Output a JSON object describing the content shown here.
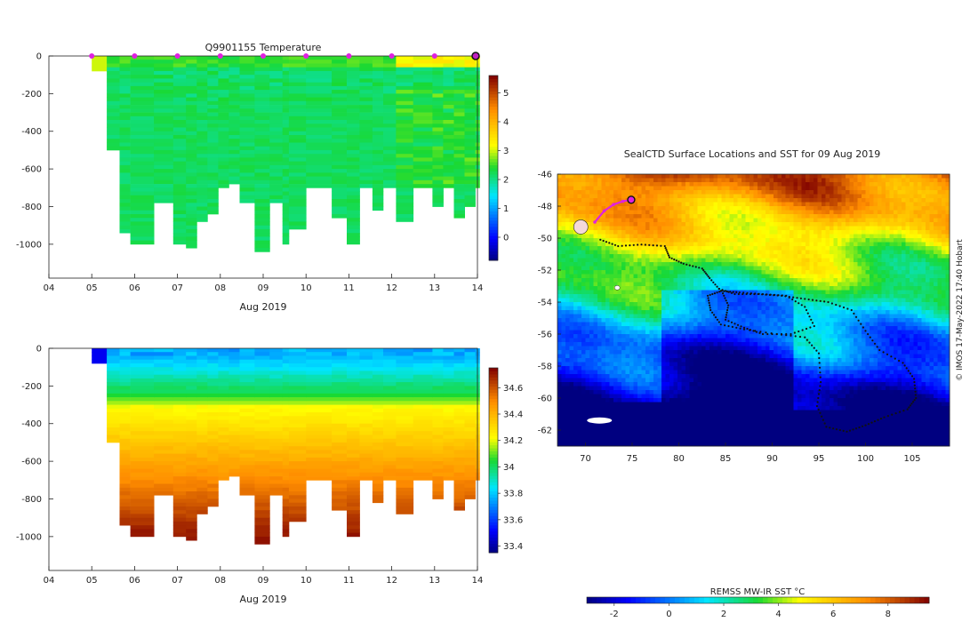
{
  "chart_data": [
    {
      "id": "temperature",
      "type": "heatmap",
      "title": "Q9901155  Temperature",
      "xlabel": "Aug 2019",
      "ylabel": "",
      "x_ticks": [
        "04",
        "05",
        "06",
        "07",
        "08",
        "09",
        "10",
        "11",
        "12",
        "13",
        "14"
      ],
      "xlim": [
        4,
        14
      ],
      "ylim": [
        0,
        -1180
      ],
      "y_ticks": [
        "0",
        "-200",
        "-400",
        "-600",
        "-800",
        "-1000"
      ],
      "y_tick_values": [
        0,
        -200,
        -400,
        -600,
        -800,
        -1000
      ],
      "colorbar_range": [
        -0.8,
        5.6
      ],
      "colorbar_ticks": [
        "0",
        "1",
        "2",
        "3",
        "4",
        "5"
      ],
      "colorbar_tick_values": [
        0,
        1,
        2,
        3,
        4,
        5
      ],
      "profile_marker_days": [
        5,
        6,
        7,
        8,
        9,
        10,
        11,
        12,
        13
      ],
      "current_position_day": 14,
      "profiles": [
        {
          "day": 5.0,
          "max_depth": 80
        },
        {
          "day": 5.35,
          "max_depth": 500
        },
        {
          "day": 5.65,
          "max_depth": 940
        },
        {
          "day": 5.9,
          "max_depth": 1000
        },
        {
          "day": 6.45,
          "max_depth": 780
        },
        {
          "day": 6.9,
          "max_depth": 990
        },
        {
          "day": 7.2,
          "max_depth": 1010
        },
        {
          "day": 7.45,
          "max_depth": 870
        },
        {
          "day": 7.7,
          "max_depth": 840
        },
        {
          "day": 7.95,
          "max_depth": 700
        },
        {
          "day": 8.2,
          "max_depth": 670
        },
        {
          "day": 8.45,
          "max_depth": 770
        },
        {
          "day": 8.8,
          "max_depth": 1040
        },
        {
          "day": 9.15,
          "max_depth": 780
        },
        {
          "day": 9.45,
          "max_depth": 1000
        },
        {
          "day": 9.6,
          "max_depth": 910
        },
        {
          "day": 10.0,
          "max_depth": 700
        },
        {
          "day": 10.6,
          "max_depth": 860
        },
        {
          "day": 10.95,
          "max_depth": 1000
        },
        {
          "day": 11.25,
          "max_depth": 700
        },
        {
          "day": 11.55,
          "max_depth": 810
        },
        {
          "day": 11.8,
          "max_depth": 700
        },
        {
          "day": 12.1,
          "max_depth": 870
        },
        {
          "day": 12.5,
          "max_depth": 700
        },
        {
          "day": 12.95,
          "max_depth": 800
        },
        {
          "day": 13.2,
          "max_depth": 700
        },
        {
          "day": 13.45,
          "max_depth": 860
        },
        {
          "day": 13.7,
          "max_depth": 800
        },
        {
          "day": 13.95,
          "max_depth": 700
        }
      ]
    },
    {
      "id": "salinity",
      "type": "heatmap",
      "title": "",
      "xlabel": "Aug 2019",
      "ylabel": "",
      "x_ticks": [
        "04",
        "05",
        "06",
        "07",
        "08",
        "09",
        "10",
        "11",
        "12",
        "13",
        "14"
      ],
      "xlim": [
        4,
        14
      ],
      "ylim": [
        0,
        -1180
      ],
      "y_ticks": [
        "0",
        "-200",
        "-400",
        "-600",
        "-800",
        "-1000"
      ],
      "y_tick_values": [
        0,
        -200,
        -400,
        -600,
        -800,
        -1000
      ],
      "colorbar_range": [
        33.35,
        34.75
      ],
      "colorbar_ticks": [
        "33.4",
        "33.6",
        "33.8",
        "34",
        "34.2",
        "34.4",
        "34.6"
      ],
      "colorbar_tick_values": [
        33.4,
        33.6,
        33.8,
        34.0,
        34.2,
        34.4,
        34.6
      ]
    },
    {
      "id": "map",
      "type": "heatmap",
      "title": "SealCTD Surface Locations and SST for 09 Aug 2019",
      "xlabel": "",
      "ylabel": "",
      "x_ticks": [
        "70",
        "75",
        "80",
        "85",
        "90",
        "95",
        "100",
        "105"
      ],
      "x_tick_values": [
        70,
        75,
        80,
        85,
        90,
        95,
        100,
        105
      ],
      "xlim": [
        67,
        109
      ],
      "y_ticks": [
        "-46",
        "-48",
        "-50",
        "-52",
        "-54",
        "-56",
        "-58",
        "-60",
        "-62"
      ],
      "y_tick_values": [
        -46,
        -48,
        -50,
        -52,
        -54,
        -56,
        -58,
        -60,
        -62
      ],
      "ylim": [
        -46,
        -63
      ],
      "track_history": [
        [
          71.6,
          -50.1
        ],
        [
          73.5,
          -50.5
        ],
        [
          76.0,
          -50.4
        ],
        [
          78.5,
          -50.5
        ],
        [
          79.0,
          -51.2
        ],
        [
          80.5,
          -51.6
        ],
        [
          82.5,
          -51.9
        ],
        [
          83.3,
          -52.5
        ],
        [
          84.5,
          -53.3
        ],
        [
          86.5,
          -53.4
        ],
        [
          89.0,
          -53.5
        ],
        [
          91.5,
          -53.6
        ],
        [
          93.5,
          -54.3
        ],
        [
          94.5,
          -55.5
        ],
        [
          92.0,
          -56.0
        ],
        [
          89.0,
          -56.0
        ],
        [
          87.0,
          -55.6
        ],
        [
          85.0,
          -55.1
        ],
        [
          85.3,
          -54.2
        ],
        [
          84.6,
          -53.3
        ],
        [
          83.1,
          -53.6
        ],
        [
          83.4,
          -54.5
        ],
        [
          84.5,
          -55.4
        ],
        [
          87.0,
          -55.7
        ],
        [
          90.5,
          -56.0
        ],
        [
          93.5,
          -56.2
        ],
        [
          95.0,
          -57.2
        ],
        [
          95.2,
          -59.0
        ],
        [
          94.8,
          -60.5
        ],
        [
          95.8,
          -61.8
        ],
        [
          98.0,
          -62.1
        ],
        [
          100.0,
          -61.7
        ],
        [
          102.0,
          -61.2
        ],
        [
          104.5,
          -60.7
        ],
        [
          105.4,
          -60.0
        ],
        [
          105.2,
          -58.8
        ],
        [
          104.0,
          -57.8
        ],
        [
          101.5,
          -57.0
        ],
        [
          100.0,
          -55.8
        ],
        [
          98.5,
          -54.5
        ],
        [
          96.0,
          -54.0
        ],
        [
          93.5,
          -53.8
        ],
        [
          91.0,
          -53.6
        ],
        [
          88.5,
          -53.5
        ],
        [
          86.0,
          -53.5
        ],
        [
          84.0,
          -53.1
        ]
      ],
      "track_recent": [
        [
          71.0,
          -49.0
        ],
        [
          72.0,
          -48.3
        ],
        [
          73.0,
          -47.9
        ],
        [
          74.0,
          -47.7
        ],
        [
          74.9,
          -47.6
        ]
      ],
      "current_position": [
        74.9,
        -47.6
      ],
      "colorbar_label": "REMSS MW-IR SST °C",
      "colorbar_range": [
        -3,
        9.5
      ],
      "colorbar_ticks": [
        "-2",
        "0",
        "2",
        "4",
        "6",
        "8"
      ],
      "colorbar_tick_values": [
        -2,
        0,
        2,
        4,
        6,
        8
      ],
      "credit": "© IMOS 17-May-2022 17:40 Hobart"
    }
  ]
}
